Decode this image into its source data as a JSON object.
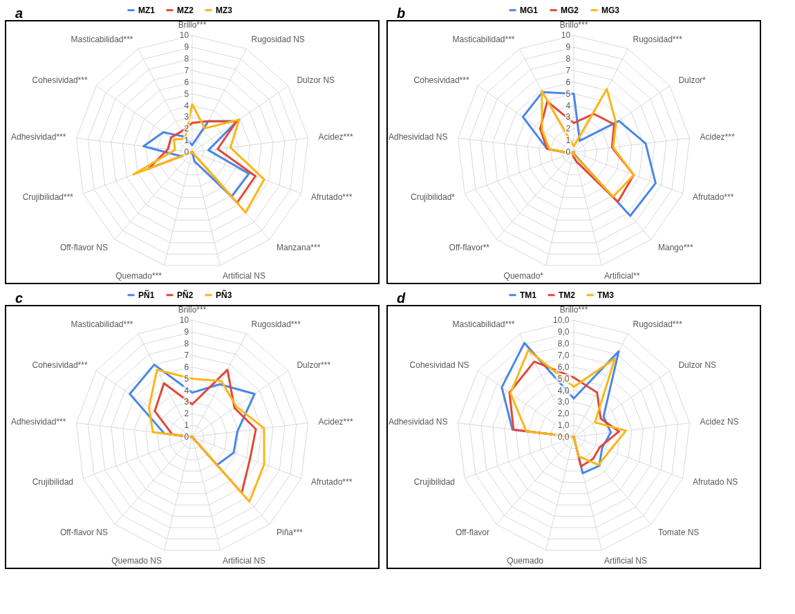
{
  "chart_data": [
    {
      "type": "radar",
      "title": "a",
      "categories": [
        "Brillo***",
        "Rugosidad NS",
        "Dulzor NS",
        "Acidez***",
        "Afrutado***",
        "Manzana***",
        "Artificial NS",
        "Quemado***",
        "Off-flavor NS",
        "Crujibilidad***",
        "Adhesividad***",
        "Cohesividad***",
        "Masticabilidad***"
      ],
      "ylim": [
        0,
        10
      ],
      "yticks": [
        0,
        1,
        2,
        3,
        4,
        5,
        6,
        7,
        8,
        9,
        10
      ],
      "grid": true,
      "legend": "top",
      "series": [
        {
          "name": "MZ1",
          "color": "#4a86e8",
          "values": [
            0.6,
            3.0,
            4.7,
            1.4,
            5.2,
            5.1,
            0.8,
            0,
            0,
            1.0,
            4.2,
            3.0,
            1.5
          ]
        },
        {
          "name": "MZ2",
          "color": "#e0483a",
          "values": [
            2.5,
            3.0,
            4.6,
            2.2,
            5.8,
            5.8,
            0,
            0,
            0,
            4.0,
            2.1,
            2.2,
            2.0
          ]
        },
        {
          "name": "MZ3",
          "color": "#fbb615",
          "values": [
            4.1,
            2.3,
            4.9,
            3.3,
            6.6,
            6.9,
            0,
            0,
            0,
            5.4,
            1.5,
            1.9,
            1.3
          ]
        }
      ]
    },
    {
      "type": "radar",
      "title": "b",
      "categories": [
        "Brillo***",
        "Rugosidad***",
        "Dulzor*",
        "Acidez***",
        "Afrutado***",
        "Mango***",
        "Artificial**",
        "Quemado*",
        "Off-flavor**",
        "Crujibilidad*",
        "Adhesividad NS",
        "Cohesividad***",
        "Masticabilidad***"
      ],
      "ylim": [
        0,
        10
      ],
      "yticks": [
        0,
        1,
        2,
        3,
        4,
        5,
        6,
        7,
        8,
        9,
        10
      ],
      "grid": true,
      "legend": "top",
      "series": [
        {
          "name": "MG1",
          "color": "#4a86e8",
          "values": [
            5.0,
            1.1,
            4.7,
            6.2,
            7.5,
            7.3,
            0.2,
            0.2,
            0,
            0.3,
            2.3,
            5.3,
            5.8
          ]
        },
        {
          "name": "MG2",
          "color": "#e0483a",
          "values": [
            2.5,
            3.7,
            4.2,
            3.3,
            5.5,
            5.7,
            0.8,
            0.3,
            0,
            0.3,
            2.3,
            3.5,
            4.9
          ]
        },
        {
          "name": "MG3",
          "color": "#fbb615",
          "values": [
            0.5,
            6.1,
            4.4,
            3.4,
            5.5,
            5.1,
            0.3,
            0.2,
            0,
            0.3,
            2.1,
            3.3,
            5.9
          ]
        }
      ]
    },
    {
      "type": "radar",
      "title": "c",
      "categories": [
        "Brillo***",
        "Rugosidad***",
        "Dulzor***",
        "Acidez***",
        "Afrutado***",
        "Piña***",
        "Artificial NS",
        "Quemado NS",
        "Off-flavor NS",
        "Crujibilidad",
        "Adhesividad***",
        "Cohesividad***",
        "Masticabilidad***"
      ],
      "ylim": [
        0,
        10
      ],
      "yticks": [
        0,
        1,
        2,
        3,
        4,
        5,
        6,
        7,
        8,
        9,
        10
      ],
      "grid": true,
      "legend": "top",
      "series": [
        {
          "name": "PÑ1",
          "color": "#4a86e8",
          "values": [
            3.8,
            5.1,
            6.5,
            3.9,
            3.8,
            3.2,
            0,
            0,
            0,
            0,
            2.4,
            6.5,
            7.0
          ]
        },
        {
          "name": "PÑ2",
          "color": "#e0483a",
          "values": [
            2.8,
            6.5,
            4.4,
            5.5,
            5.3,
            6.4,
            0,
            0,
            0,
            0,
            1.7,
            3.9,
            5.2
          ]
        },
        {
          "name": "PÑ3",
          "color": "#fbb615",
          "values": [
            5.0,
            5.4,
            4.6,
            6.2,
            6.6,
            7.4,
            0,
            0,
            0,
            0,
            3.4,
            4.5,
            6.5
          ]
        }
      ]
    },
    {
      "type": "radar",
      "title": "d",
      "categories": [
        "Brillo***",
        "Rugosidad***",
        "Dulzor NS",
        "Acidez NS",
        "Afrutado NS",
        "Tomate NS",
        "Artificial NS",
        "Quemado",
        "Off-flavor",
        "Crujibilidad",
        "Adhesividad NS",
        "Cohesividad NS",
        "Masticabilidad***"
      ],
      "ylim": [
        0,
        10
      ],
      "yticks": [
        {
          "value": 0,
          "label": "0,0"
        },
        {
          "value": 1,
          "label": "1,0"
        },
        {
          "value": 2,
          "label": "2,0"
        },
        {
          "value": 3,
          "label": "3,0"
        },
        {
          "value": 4,
          "label": "4,0"
        },
        {
          "value": 5,
          "label": "5,0"
        },
        {
          "value": 6,
          "label": "6,0"
        },
        {
          "value": 7,
          "label": "7,0"
        },
        {
          "value": 8,
          "label": "8,0"
        },
        {
          "value": 9,
          "label": "9,0"
        },
        {
          "value": 10,
          "label": "10,0"
        }
      ],
      "grid": true,
      "legend": "top",
      "series": [
        {
          "name": "TM1",
          "color": "#4a86e8",
          "values": [
            3.3,
            8.3,
            3.1,
            3.2,
            2.6,
            3.3,
            3.2,
            0,
            0,
            0,
            5.3,
            7.5,
            9.1
          ]
        },
        {
          "name": "TM2",
          "color": "#e0483a",
          "values": [
            5.1,
            4.3,
            2.8,
            3.9,
            2.4,
            2.5,
            2.6,
            0,
            0,
            0,
            5.2,
            6.7,
            7.3
          ]
        },
        {
          "name": "TM3",
          "color": "#fbb615",
          "values": [
            4.3,
            7.6,
            2.2,
            4.5,
            3.3,
            3.2,
            1.7,
            0,
            0,
            0,
            4.1,
            6.6,
            8.4
          ]
        }
      ]
    }
  ]
}
